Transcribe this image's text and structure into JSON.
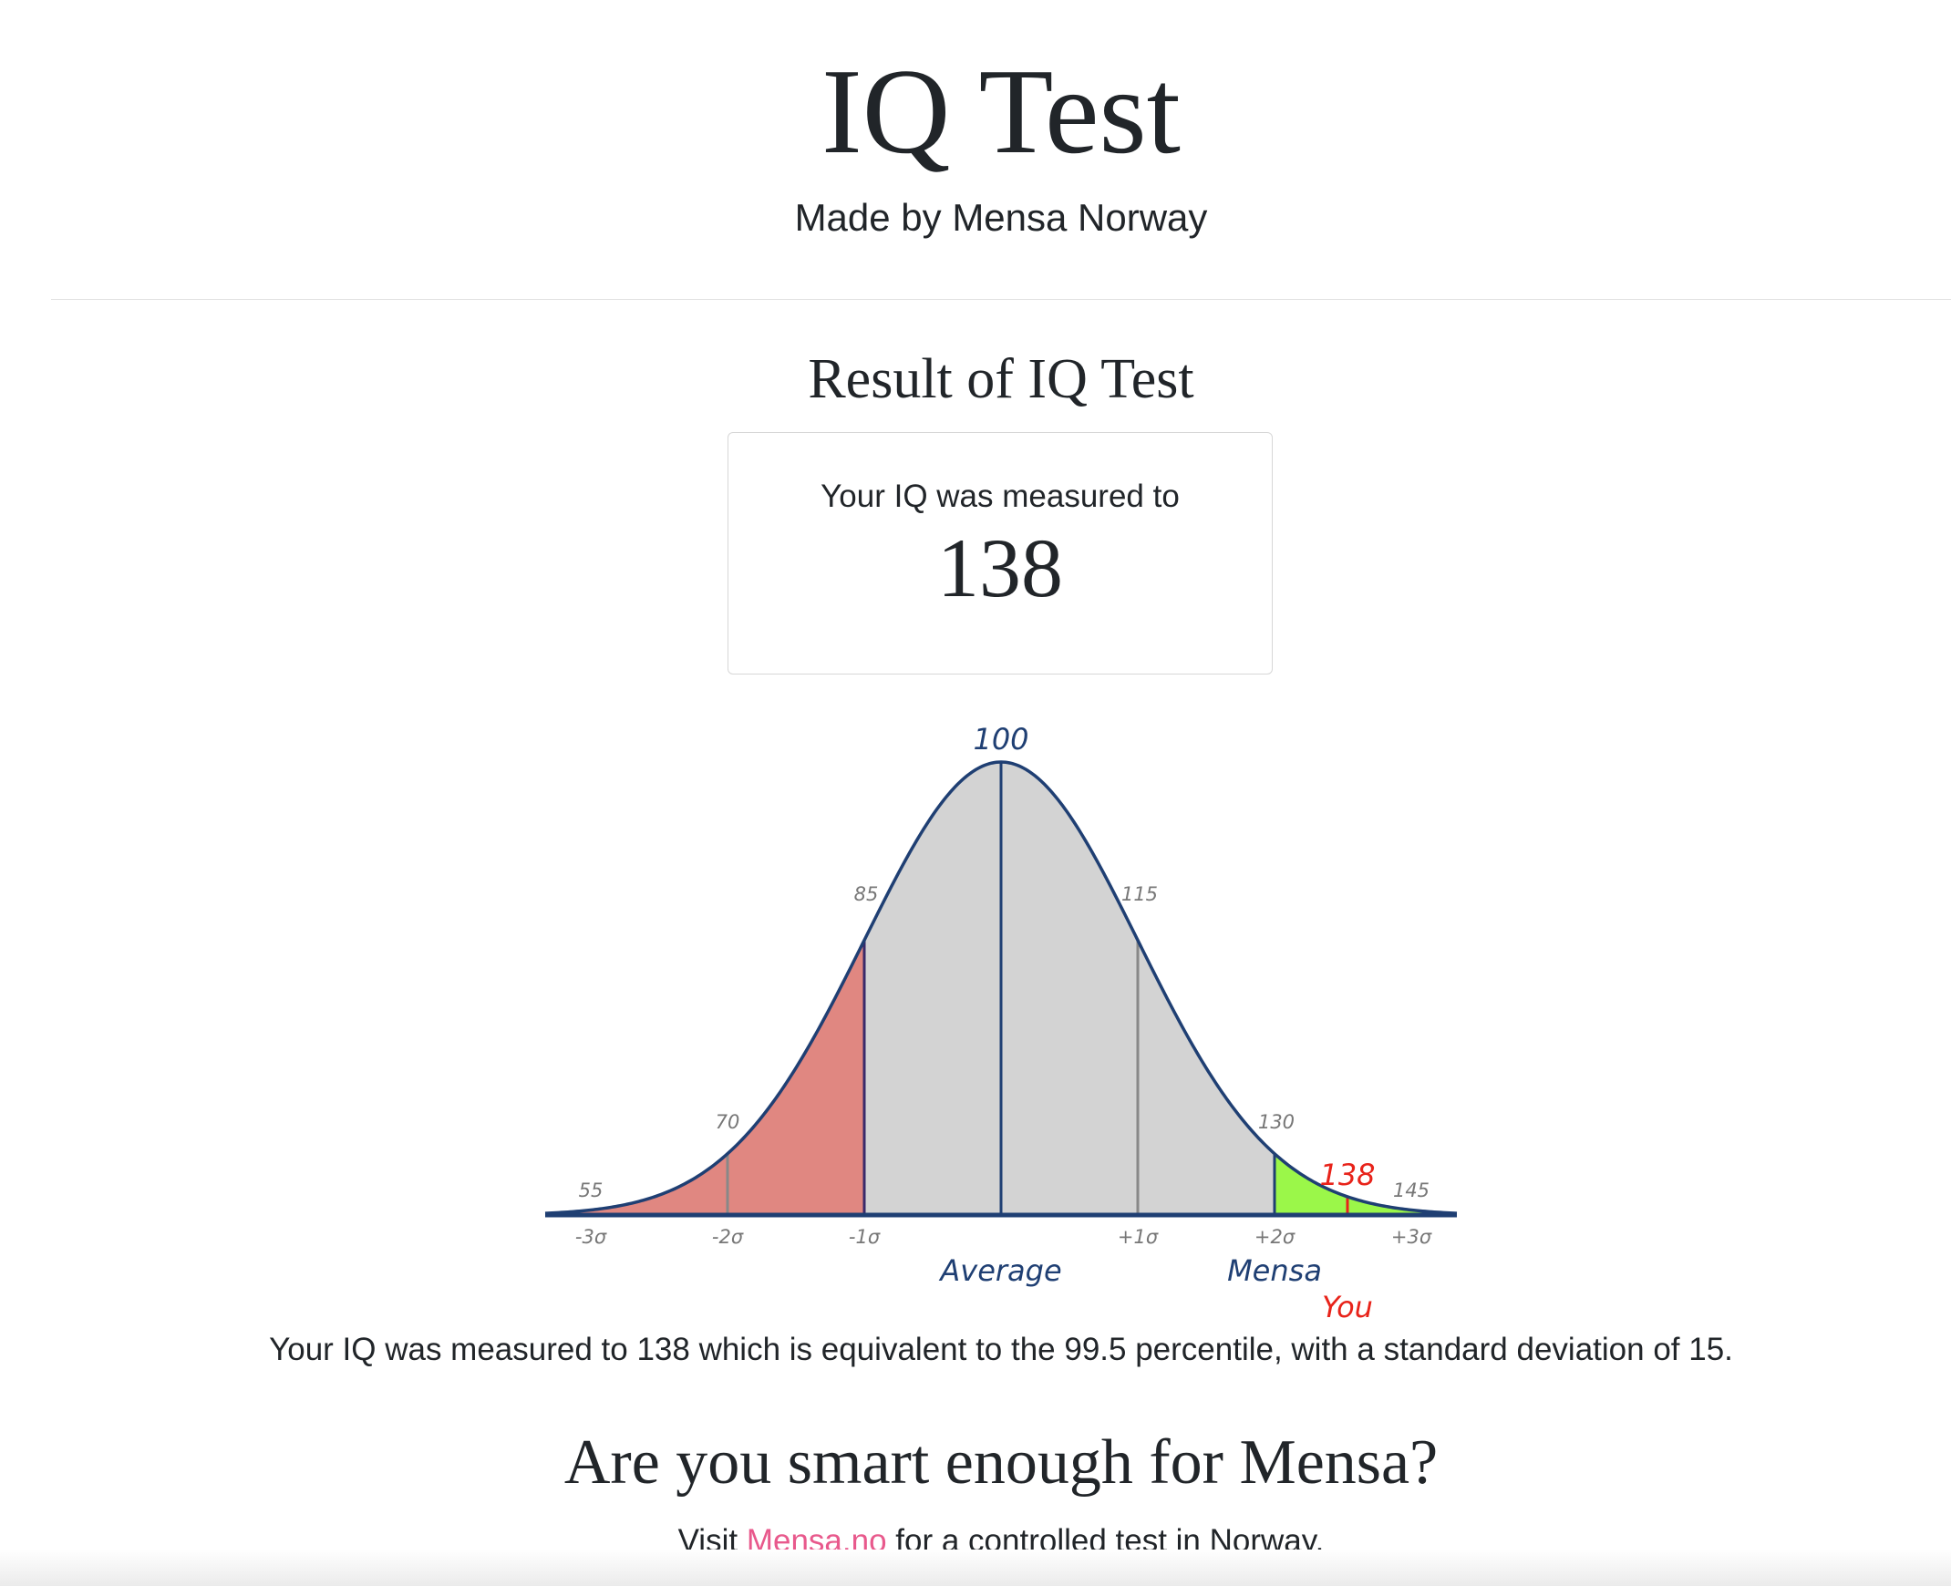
{
  "header": {
    "title": "IQ Test",
    "subtitle": "Made by Mensa Norway"
  },
  "result": {
    "heading": "Result of IQ Test",
    "card_caption": "Your IQ was measured to",
    "score": "138"
  },
  "summary": "Your IQ was measured to 138 which is equivalent to the 99.5 percentile, with a standard deviation of 15.",
  "cta": {
    "heading": "Are you smart enough for Mensa?",
    "visit_prefix": "Visit",
    "link_text": "Mensa.no",
    "visit_suffix": "for a controlled test in Norway."
  },
  "colors": {
    "curve": "#1f3f73",
    "fill": "#d3d3d3",
    "below_fill": "#e08781",
    "mensa_fill": "#9bf749",
    "you": "#e8231a",
    "gray_line": "#888888",
    "link": "#e8598c"
  },
  "chart_data": {
    "type": "area",
    "title": "",
    "mean": 100,
    "std_dev": 15,
    "x_range": [
      50,
      150
    ],
    "value_labels": [
      "55",
      "70",
      "85",
      "100",
      "115",
      "130",
      "145"
    ],
    "sigma_labels": [
      "-3σ",
      "-2σ",
      "-1σ",
      "+1σ",
      "+2σ",
      "+3σ"
    ],
    "markers": [
      {
        "label": "Average",
        "value": 100
      },
      {
        "label": "Mensa",
        "value": 130
      },
      {
        "label": "You",
        "value": 138,
        "value_label": "138"
      }
    ],
    "shaded_regions": [
      {
        "name": "below average",
        "from": 50,
        "to": 85
      },
      {
        "name": "mensa",
        "from": 130,
        "to": 150
      }
    ]
  }
}
